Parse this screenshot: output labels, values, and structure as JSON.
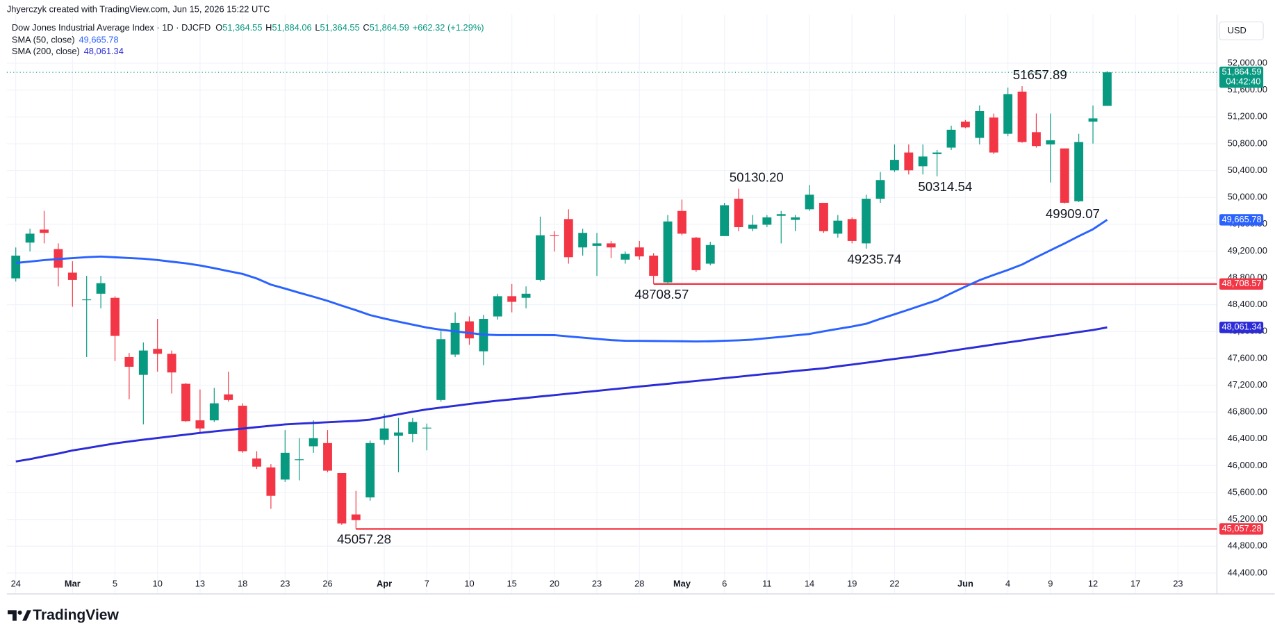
{
  "header": {
    "credit": "Jhyerczyk created with TradingView.com, Jun 15, 2026 15:22 UTC",
    "symbol": "Dow Jones Industrial Average Index · 1D · DJCFD",
    "ohlc": [
      {
        "key": "O",
        "value": "51,364.55"
      },
      {
        "key": "H",
        "value": "51,884.06"
      },
      {
        "key": "L",
        "value": "51,364.55"
      },
      {
        "key": "C",
        "value": "51,864.59"
      }
    ],
    "change": "+662.32 (+1.29%)",
    "currency": "USD",
    "logo": "TradingView"
  },
  "chart_data": {
    "type": "candlestick",
    "up_color": "#089981",
    "down_color": "#f23645",
    "categories": [
      "24",
      null,
      null,
      null,
      "Mar",
      null,
      null,
      "5",
      null,
      null,
      "10",
      null,
      null,
      "13",
      null,
      null,
      "18",
      null,
      null,
      "23",
      null,
      null,
      "26",
      null,
      null,
      null,
      "Apr",
      null,
      null,
      "7",
      null,
      null,
      "10",
      null,
      null,
      "15",
      null,
      null,
      "20",
      null,
      null,
      "23",
      null,
      null,
      "28",
      null,
      null,
      "May",
      null,
      null,
      "6",
      null,
      null,
      "11",
      null,
      null,
      "14",
      null,
      null,
      "19",
      null,
      null,
      "22",
      null,
      null,
      null,
      null,
      "Jun",
      null,
      null,
      "4",
      null,
      null,
      "9",
      null,
      null,
      "12",
      null,
      null,
      "17",
      null,
      null,
      "23",
      null,
      null
    ],
    "open": [
      48793,
      49326,
      49520,
      49229,
      48878,
      48467,
      48564,
      48503,
      47620,
      47354,
      47741,
      47668,
      47221,
      46676,
      46676,
      47063,
      46894,
      46107,
      45974,
      45793,
      46083,
      46289,
      46337,
      45890,
      45273,
      45527,
      46386,
      46446,
      46471,
      46555,
      46979,
      47656,
      48152,
      47705,
      48225,
      48527,
      48503,
      48770,
      49435,
      49677,
      49254,
      49278,
      49314,
      49072,
      49254,
      49132,
      48733,
      49798,
      49399,
      49012,
      49423,
      49980,
      49532,
      49592,
      49725,
      49665,
      49822,
      49919,
      49459,
      49677,
      49314,
      49980,
      50403,
      50669,
      50464,
      50645,
      50742,
      51129,
      50887,
      51190,
      50948,
      51577,
      50972,
      50790,
      50730,
      49943,
      51129,
      51364.55,
      null,
      null,
      null,
      null,
      null,
      null,
      null
    ],
    "high": [
      49253,
      49532,
      49798,
      49314,
      49048,
      48830,
      48830,
      48527,
      47680,
      47838,
      48189,
      47717,
      47233,
      47136,
      47160,
      47402,
      46930,
      46216,
      46023,
      46531,
      46410,
      46676,
      46531,
      45890,
      45624,
      46374,
      46773,
      46712,
      46712,
      46628,
      48007,
      48286,
      48225,
      48249,
      48564,
      48709,
      48673,
      49713,
      49496,
      49822,
      49532,
      49471,
      49350,
      49193,
      49350,
      49169,
      49737,
      49967,
      49411,
      49338,
      49919,
      50130.2,
      49737,
      49737,
      49798,
      49737,
      50185,
      49919,
      49737,
      49701,
      50040,
      50379,
      50790,
      50790,
      50790,
      50706,
      51069,
      51153,
      51371,
      51250,
      51637,
      51657.89,
      51250,
      51250,
      50730,
      50948,
      51371,
      51884.06,
      null,
      null,
      null,
      null,
      null,
      null,
      null
    ],
    "low": [
      48745,
      49193,
      49314,
      48673,
      48370,
      47620,
      48346,
      47560,
      46991,
      46616,
      47402,
      47076,
      46652,
      46495,
      46652,
      46955,
      46192,
      45950,
      45357,
      45757,
      45781,
      46192,
      45902,
      45115,
      45057.28,
      45478,
      46313,
      45902,
      46350,
      46229,
      46955,
      47620,
      47802,
      47499,
      48177,
      48286,
      48346,
      48745,
      49193,
      49012,
      49132,
      48830,
      49096,
      49012,
      49072,
      48708.57,
      48721,
      49435,
      48891,
      48987,
      49423,
      49496,
      49496,
      49556,
      49314,
      49496,
      49798,
      49471,
      49399,
      49314,
      49235.74,
      49919,
      50379,
      50342,
      50342,
      50314.54,
      50706,
      51032,
      50790,
      50645,
      50911,
      50814,
      50742,
      50222,
      49909.07,
      49930,
      50802,
      51364.55,
      null,
      null,
      null,
      null,
      null,
      null,
      null
    ],
    "close": [
      49132,
      49459,
      49471,
      48951,
      48770,
      48479,
      48721,
      47935,
      47475,
      47717,
      47668,
      47390,
      46664,
      46555,
      46930,
      46979,
      46216,
      45986,
      45551,
      46192,
      46095,
      46410,
      45926,
      45139,
      45188,
      46337,
      46555,
      46495,
      46652,
      46567,
      47886,
      48128,
      47898,
      48189,
      48527,
      48443,
      48564,
      49435,
      49423,
      49108,
      49471,
      49314,
      49254,
      49157,
      49120,
      48830,
      49641,
      49459,
      48915,
      49290,
      49883,
      49556,
      49592,
      49702,
      49750,
      49702,
      50040,
      49496,
      49653,
      49350,
      49980,
      50258,
      50560,
      50403,
      50609,
      50669,
      51008,
      51044,
      51286,
      50669,
      51540,
      50826,
      50766,
      50851,
      49920,
      50826,
      51178,
      51864.59,
      null,
      null,
      null,
      null,
      null,
      null,
      null
    ],
    "series": [
      {
        "name": "SMA (50, close)",
        "color": "#2962ff",
        "last_label": "49,665.78",
        "values": [
          49023,
          49043,
          49065,
          49081,
          49095,
          49109,
          49118,
          49107,
          49096,
          49086,
          49066,
          49041,
          49017,
          48985,
          48944,
          48900,
          48859,
          48791,
          48699,
          48640,
          48578,
          48519,
          48457,
          48386,
          48318,
          48245,
          48194,
          48147,
          48103,
          48059,
          48027,
          48003,
          47979,
          47955,
          47947,
          47947,
          47947,
          47947,
          47946,
          47927,
          47909,
          47891,
          47872,
          47862,
          47861,
          47859,
          47857,
          47855,
          47852,
          47855,
          47862,
          47869,
          47880,
          47901,
          47921,
          47943,
          47964,
          48003,
          48040,
          48075,
          48116,
          48189,
          48257,
          48326,
          48398,
          48467,
          48571,
          48670,
          48766,
          48844,
          48918,
          48999,
          49108,
          49211,
          49314,
          49422,
          49525,
          49665.78,
          null,
          null,
          null,
          null,
          null,
          null,
          null
        ]
      },
      {
        "name": "SMA (200, close)",
        "color": "#2b2bd8",
        "last_label": "48,061.34",
        "values": [
          46063,
          46098,
          46140,
          46181,
          46227,
          46261,
          46297,
          46332,
          46361,
          46388,
          46412,
          46438,
          46463,
          46489,
          46511,
          46533,
          46553,
          46575,
          46595,
          46616,
          46627,
          46637,
          46648,
          46658,
          46668,
          46687,
          46726,
          46766,
          46805,
          46840,
          46867,
          46893,
          46920,
          46945,
          46969,
          46989,
          47010,
          47032,
          47052,
          47074,
          47095,
          47115,
          47137,
          47158,
          47180,
          47200,
          47221,
          47243,
          47263,
          47284,
          47306,
          47326,
          47348,
          47369,
          47390,
          47412,
          47432,
          47452,
          47481,
          47508,
          47535,
          47564,
          47592,
          47619,
          47648,
          47680,
          47712,
          47744,
          47775,
          47807,
          47838,
          47868,
          47901,
          47931,
          47961,
          47993,
          48023,
          48061.34,
          null,
          null,
          null,
          null,
          null,
          null,
          null
        ]
      }
    ],
    "high_labels": [
      {
        "value": 50130.2,
        "label": "50130.20"
      },
      51657.89
    ],
    "low_labels": [
      45057.28,
      48708.57,
      49235.74,
      50314.54,
      49909.07
    ],
    "levels": [
      {
        "value": 48708.57,
        "label": "48,708.57"
      },
      {
        "value": 45057.28,
        "label": "45,057.28"
      }
    ],
    "last_price": {
      "value": 51864.59,
      "label": "51,864.59",
      "countdown": "04:42:40"
    },
    "ylim": [
      44100,
      52640
    ],
    "yticks": [
      {
        "value": 44400,
        "label": "44,400.00"
      },
      {
        "value": 44800,
        "label": "44,800.00"
      },
      {
        "value": 45200,
        "label": "45,200.00"
      },
      {
        "value": 45600,
        "label": "45,600.00"
      },
      {
        "value": 46000,
        "label": "46,000.00"
      },
      {
        "value": 46400,
        "label": "46,400.00"
      },
      {
        "value": 46800,
        "label": "46,800.00"
      },
      {
        "value": 47200,
        "label": "47,200.00"
      },
      {
        "value": 47600,
        "label": "47,600.00"
      },
      {
        "value": 48000,
        "label": "48,000.00"
      },
      {
        "value": 48400,
        "label": "48,400.00"
      },
      {
        "value": 48800,
        "label": "48,800.00"
      },
      {
        "value": 49200,
        "label": "49,200.00"
      },
      {
        "value": 49600,
        "label": "49,600.00"
      },
      {
        "value": 50000,
        "label": "50,000.00"
      },
      {
        "value": 50400,
        "label": "50,400.00"
      },
      {
        "value": 50800,
        "label": "50,800.00"
      },
      {
        "value": 51200,
        "label": "51,200.00"
      },
      {
        "value": 51600,
        "label": "51,600.00"
      },
      {
        "value": 52000,
        "label": "52,000.00"
      }
    ],
    "grid": true
  }
}
